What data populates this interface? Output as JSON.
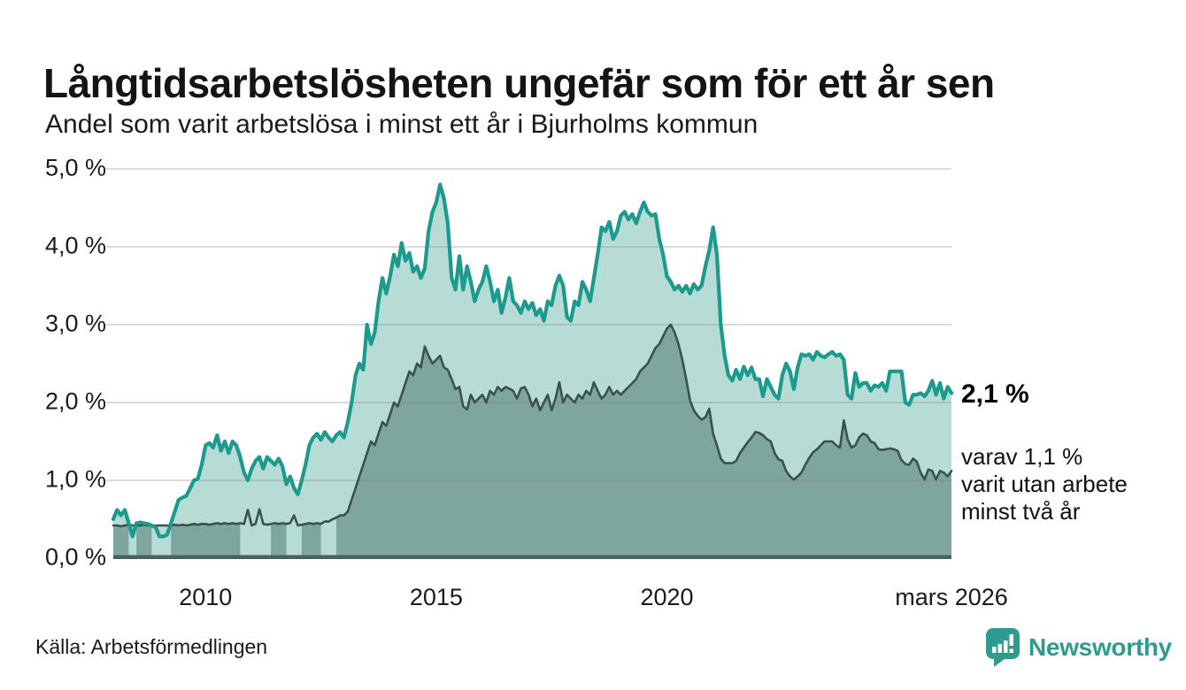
{
  "title": "Långtidsarbetslösheten ungefär som för ett år sen",
  "subtitle": "Andel som varit arbetslösa i minst ett år i Bjurholms kommun",
  "source": "Källa: Arbetsförmedlingen",
  "branding": {
    "name": "Newsworthy",
    "color": "#2d9c8f",
    "icon": "newsworthy-speech-bubble-bar-chart"
  },
  "annotations": {
    "latest_total_label": "2,1 %",
    "sub_lines": [
      "varav 1,1 %",
      "varit utan arbete",
      "minst två år"
    ]
  },
  "colors": {
    "line_total": "#1d9a8e",
    "fill_total": "#b7dcd6",
    "line_two_years": "#3a514d",
    "fill_two_years": "#7ea69e",
    "baseline": "#4a615c",
    "grid": "rgba(130,130,130,0.28)"
  },
  "chart_data": {
    "type": "area",
    "title": "Långtidsarbetslösheten ungefär som för ett år sen",
    "subtitle": "Andel som varit arbetslösa i minst ett år i Bjurholms kommun",
    "x_unit": "month",
    "x_start": "2008-01",
    "x_end": "2026-03",
    "ylim": [
      0,
      5
    ],
    "grid": true,
    "y_tick_labels_top_to_bottom": [
      "5,0 %",
      "4,0 %",
      "3,0 %",
      "2,0 %",
      "1,0 %",
      "0,0 %"
    ],
    "x_ticks": [
      {
        "label": "2010",
        "month_index": 24
      },
      {
        "label": "2015",
        "month_index": 84
      },
      {
        "label": "2020",
        "month_index": 144
      },
      {
        "label": "mars 2026",
        "month_index": 218
      }
    ],
    "latest": {
      "total_pct": 2.1,
      "two_years_pct": 1.1
    },
    "fill_gap_month_ranges": [
      [
        34,
        37
      ],
      [
        38,
        41
      ],
      [
        46,
        49
      ],
      [
        55,
        58
      ]
    ],
    "series": [
      {
        "name": "Arbetslösa minst ett år",
        "values": [
          0.5,
          0.62,
          0.55,
          0.62,
          0.45,
          0.28,
          0.45,
          0.46,
          0.45,
          0.44,
          0.42,
          0.4,
          0.28,
          0.28,
          0.3,
          0.45,
          0.6,
          0.75,
          0.78,
          0.8,
          0.9,
          1.0,
          1.02,
          1.2,
          1.45,
          1.48,
          1.42,
          1.58,
          1.38,
          1.5,
          1.35,
          1.5,
          1.45,
          1.3,
          1.1,
          1.0,
          1.15,
          1.25,
          1.3,
          1.15,
          1.3,
          1.25,
          1.2,
          1.28,
          1.18,
          0.95,
          1.05,
          0.9,
          0.82,
          1.0,
          1.2,
          1.45,
          1.55,
          1.6,
          1.52,
          1.62,
          1.55,
          1.5,
          1.58,
          1.62,
          1.55,
          1.75,
          2.0,
          2.35,
          2.5,
          2.42,
          3.0,
          2.75,
          2.9,
          3.3,
          3.6,
          3.4,
          3.62,
          3.9,
          3.75,
          4.05,
          3.82,
          3.92,
          3.68,
          3.75,
          3.6,
          3.72,
          4.2,
          4.45,
          4.57,
          4.8,
          4.62,
          4.3,
          3.6,
          3.45,
          3.88,
          3.45,
          3.75,
          3.55,
          3.3,
          3.45,
          3.55,
          3.75,
          3.55,
          3.3,
          3.45,
          3.15,
          3.35,
          3.6,
          3.3,
          3.25,
          3.15,
          3.3,
          3.2,
          3.28,
          3.12,
          3.2,
          3.05,
          3.3,
          3.25,
          3.5,
          3.63,
          3.5,
          3.1,
          3.05,
          3.3,
          3.25,
          3.55,
          3.45,
          3.3,
          3.6,
          3.9,
          4.25,
          4.2,
          4.32,
          4.1,
          4.2,
          4.4,
          4.45,
          4.35,
          4.42,
          4.3,
          4.45,
          4.57,
          4.45,
          4.4,
          4.42,
          4.1,
          3.9,
          3.62,
          3.55,
          3.45,
          3.5,
          3.42,
          3.5,
          3.4,
          3.52,
          3.45,
          3.5,
          3.75,
          3.95,
          4.25,
          3.9,
          3.0,
          2.6,
          2.35,
          2.28,
          2.42,
          2.3,
          2.46,
          2.35,
          2.45,
          2.3,
          2.3,
          2.08,
          2.3,
          2.2,
          2.1,
          2.05,
          2.35,
          2.5,
          2.4,
          2.17,
          2.45,
          2.62,
          2.6,
          2.62,
          2.55,
          2.65,
          2.6,
          2.58,
          2.62,
          2.65,
          2.6,
          2.62,
          2.55,
          2.1,
          2.05,
          2.38,
          2.2,
          2.25,
          2.25,
          2.15,
          2.22,
          2.2,
          2.25,
          2.15,
          2.4,
          2.4,
          2.4,
          2.4,
          2.0,
          1.97,
          2.1,
          2.1,
          2.12,
          2.08,
          2.15,
          2.28,
          2.1,
          2.25,
          2.05,
          2.2,
          2.12
        ]
      },
      {
        "name": "Varav arbetslösa minst två år",
        "values": [
          0.42,
          0.42,
          0.41,
          0.42,
          0.43,
          0.42,
          0.42,
          0.42,
          0.43,
          0.42,
          0.42,
          0.42,
          0.42,
          0.42,
          0.42,
          0.42,
          0.43,
          0.42,
          0.43,
          0.42,
          0.43,
          0.44,
          0.43,
          0.44,
          0.44,
          0.43,
          0.44,
          0.45,
          0.44,
          0.45,
          0.44,
          0.45,
          0.44,
          0.45,
          0.44,
          0.62,
          0.42,
          0.44,
          0.63,
          0.44,
          0.43,
          0.44,
          0.45,
          0.44,
          0.45,
          0.44,
          0.45,
          0.55,
          0.42,
          0.43,
          0.44,
          0.45,
          0.44,
          0.45,
          0.44,
          0.47,
          0.47,
          0.5,
          0.52,
          0.55,
          0.55,
          0.6,
          0.75,
          0.9,
          1.05,
          1.2,
          1.35,
          1.5,
          1.45,
          1.6,
          1.75,
          1.7,
          1.85,
          2.0,
          1.95,
          2.1,
          2.25,
          2.4,
          2.35,
          2.5,
          2.45,
          2.72,
          2.6,
          2.5,
          2.55,
          2.6,
          2.45,
          2.42,
          2.3,
          2.17,
          2.2,
          1.95,
          1.91,
          2.1,
          2.0,
          2.05,
          2.1,
          2.0,
          2.15,
          2.1,
          2.2,
          2.15,
          2.2,
          2.18,
          2.15,
          2.05,
          2.18,
          2.2,
          2.1,
          1.95,
          2.05,
          1.9,
          2.0,
          2.1,
          1.9,
          2.05,
          2.26,
          2.0,
          2.1,
          2.05,
          2.0,
          2.1,
          2.05,
          2.15,
          2.1,
          2.26,
          2.15,
          2.05,
          2.1,
          2.2,
          2.1,
          2.15,
          2.1,
          2.15,
          2.2,
          2.25,
          2.3,
          2.4,
          2.45,
          2.5,
          2.6,
          2.7,
          2.75,
          2.85,
          2.95,
          3.0,
          2.9,
          2.75,
          2.55,
          2.3,
          2.03,
          1.9,
          1.83,
          1.78,
          1.81,
          1.92,
          1.6,
          1.45,
          1.28,
          1.22,
          1.22,
          1.22,
          1.25,
          1.35,
          1.42,
          1.49,
          1.55,
          1.62,
          1.61,
          1.58,
          1.53,
          1.5,
          1.35,
          1.27,
          1.25,
          1.12,
          1.05,
          1.01,
          1.05,
          1.1,
          1.2,
          1.29,
          1.36,
          1.4,
          1.45,
          1.5,
          1.5,
          1.5,
          1.45,
          1.42,
          1.77,
          1.53,
          1.42,
          1.45,
          1.55,
          1.6,
          1.58,
          1.5,
          1.48,
          1.4,
          1.39,
          1.4,
          1.41,
          1.4,
          1.38,
          1.26,
          1.21,
          1.2,
          1.28,
          1.24,
          1.1,
          1.01,
          1.14,
          1.12,
          1.01,
          1.12,
          1.1,
          1.05,
          1.12
        ]
      }
    ]
  }
}
